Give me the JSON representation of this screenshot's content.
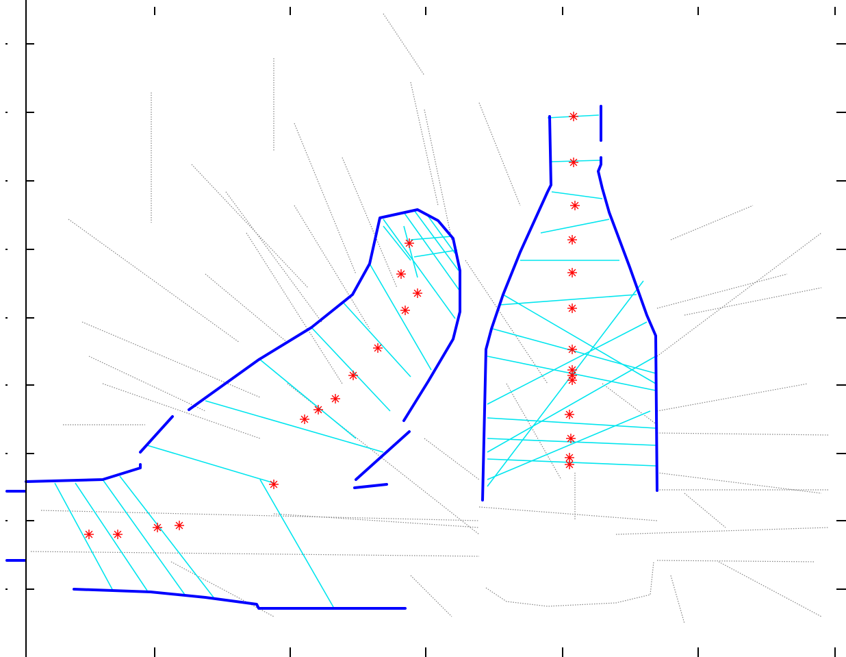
{
  "chart_data": {
    "type": "scatter",
    "title": "",
    "xlabel": "",
    "ylabel": "",
    "grid": false,
    "legend": "none",
    "x_ticks_visible": true,
    "y_ticks_visible": true,
    "tick_labels_visible": false,
    "colors": {
      "boundary": "#0000ff",
      "ribs": "#00e5ee",
      "axis_points": "#ff0000",
      "edges": "#808080",
      "axes": "#000000"
    },
    "series": [
      {
        "name": "",
        "kind": "boundary",
        "segments": [
          [
            [
              10,
              717
            ],
            [
              36,
              717
            ]
          ],
          [
            [
              10,
              818
            ],
            [
              36,
              818
            ]
          ],
          [
            [
              38,
              703
            ],
            [
              150,
              700
            ],
            [
              205,
              683
            ],
            [
              205,
              678
            ]
          ],
          [
            [
              205,
              660
            ],
            [
              252,
              608
            ]
          ],
          [
            [
              276,
              598
            ],
            [
              378,
              525
            ],
            [
              455,
              478
            ],
            [
              515,
              430
            ],
            [
              540,
              385
            ],
            [
              555,
              318
            ],
            [
              610,
              306
            ],
            [
              640,
              322
            ],
            [
              662,
              348
            ],
            [
              672,
              395
            ],
            [
              672,
              455
            ],
            [
              662,
              495
            ],
            [
              626,
              556
            ],
            [
              590,
              614
            ]
          ],
          [
            [
              598,
              630
            ],
            [
              520,
              700
            ]
          ],
          [
            [
              518,
              712
            ],
            [
              565,
              707
            ]
          ],
          [
            [
              108,
              860
            ],
            [
              220,
              864
            ],
            [
              300,
              872
            ],
            [
              375,
              882
            ],
            [
              378,
              888
            ],
            [
              592,
              888
            ]
          ],
          [
            [
              705,
              730
            ],
            [
              710,
              510
            ],
            [
              718,
              480
            ],
            [
              735,
              430
            ],
            [
              760,
              368
            ],
            [
              800,
              280
            ],
            [
              805,
              270
            ],
            [
              803,
              170
            ]
          ],
          [
            [
              878,
              155
            ],
            [
              878,
              205
            ]
          ],
          [
            [
              878,
              230
            ],
            [
              878,
              240
            ],
            [
              874,
              250
            ],
            [
              880,
              275
            ],
            [
              890,
              310
            ],
            [
              920,
              390
            ],
            [
              945,
              460
            ],
            [
              958,
              490
            ],
            [
              960,
              716
            ]
          ]
        ]
      },
      {
        "name": "",
        "kind": "ribs",
        "segments": [
          [
            [
              80,
              705
            ],
            [
              165,
              862
            ]
          ],
          [
            [
              110,
              705
            ],
            [
              215,
              862
            ]
          ],
          [
            [
              150,
              700
            ],
            [
              270,
              868
            ]
          ],
          [
            [
              175,
              695
            ],
            [
              312,
              872
            ]
          ],
          [
            [
              380,
              700
            ],
            [
              487,
              886
            ]
          ],
          [
            [
              215,
              650
            ],
            [
              400,
              705
            ]
          ],
          [
            [
              300,
              585
            ],
            [
              560,
              660
            ]
          ],
          [
            [
              380,
              525
            ],
            [
              520,
              640
            ]
          ],
          [
            [
              455,
              478
            ],
            [
              570,
              600
            ]
          ],
          [
            [
              500,
              440
            ],
            [
              600,
              550
            ]
          ],
          [
            [
              540,
              385
            ],
            [
              630,
              540
            ]
          ],
          [
            [
              560,
              320
            ],
            [
              665,
              465
            ]
          ],
          [
            [
              590,
              310
            ],
            [
              672,
              425
            ]
          ],
          [
            [
              605,
              307
            ],
            [
              670,
              395
            ]
          ],
          [
            [
              625,
              315
            ],
            [
              665,
              370
            ]
          ],
          [
            [
              560,
              330
            ],
            [
              600,
              380
            ]
          ],
          [
            [
              590,
              330
            ],
            [
              610,
              405
            ]
          ],
          [
            [
              600,
              350
            ],
            [
              660,
              345
            ]
          ],
          [
            [
              605,
              375
            ],
            [
              668,
              365
            ]
          ],
          [
            [
              800,
              172
            ],
            [
              875,
              168
            ]
          ],
          [
            [
              806,
              236
            ],
            [
              876,
              234
            ]
          ],
          [
            [
              806,
              280
            ],
            [
              880,
              290
            ]
          ],
          [
            [
              790,
              340
            ],
            [
              890,
              320
            ]
          ],
          [
            [
              760,
              380
            ],
            [
              905,
              380
            ]
          ],
          [
            [
              735,
              430
            ],
            [
              958,
              560
            ]
          ],
          [
            [
              720,
              480
            ],
            [
              958,
              545
            ]
          ],
          [
            [
              712,
              520
            ],
            [
              958,
              570
            ]
          ],
          [
            [
              712,
              590
            ],
            [
              945,
              470
            ]
          ],
          [
            [
              712,
              640
            ],
            [
              958,
              650
            ]
          ],
          [
            [
              712,
              670
            ],
            [
              958,
              680
            ]
          ],
          [
            [
              712,
              700
            ],
            [
              950,
              600
            ]
          ],
          [
            [
              712,
              710
            ],
            [
              940,
              410
            ]
          ],
          [
            [
              730,
              445
            ],
            [
              930,
              430
            ]
          ],
          [
            [
              712,
              610
            ],
            [
              958,
              625
            ]
          ],
          [
            [
              712,
              660
            ],
            [
              958,
              520
            ]
          ]
        ]
      },
      {
        "name": "",
        "kind": "medial_axis_points",
        "x": [
          130,
          172,
          230,
          262,
          400,
          445,
          465,
          490,
          516,
          552,
          592,
          610,
          586,
          598,
          838,
          838,
          840,
          836,
          836,
          836,
          836,
          836,
          836,
          836,
          832,
          834,
          832,
          832
        ],
        "y": [
          780,
          780,
          770,
          767,
          707,
          612,
          598,
          582,
          548,
          508,
          453,
          428,
          400,
          355,
          170,
          237,
          300,
          350,
          398,
          450,
          510,
          540,
          548,
          555,
          605,
          640,
          668,
          678
        ]
      },
      {
        "name": "",
        "kind": "edge_lines",
        "segments": [
          [
            [
              92,
              620
            ],
            [
              212,
              620
            ]
          ],
          [
            [
              45,
              805
            ],
            [
              700,
              812
            ]
          ],
          [
            [
              960,
              632
            ],
            [
              1210,
              635
            ]
          ],
          [
            [
              960,
              715
            ],
            [
              1210,
              715
            ]
          ],
          [
            [
              960,
              818
            ],
            [
              1190,
              820
            ]
          ],
          [
            [
              221,
              135
            ],
            [
              221,
              325
            ]
          ],
          [
            [
              400,
              85
            ],
            [
              400,
              220
            ]
          ],
          [
            [
              710,
              858
            ],
            [
              740,
              878
            ],
            [
              800,
              885
            ],
            [
              900,
              880
            ],
            [
              950,
              868
            ],
            [
              955,
              820
            ]
          ],
          [
            [
              840,
              690
            ],
            [
              840,
              760
            ]
          ],
          [
            [
              100,
              320
            ],
            [
              350,
              500
            ]
          ],
          [
            [
              300,
              400
            ],
            [
              420,
              500
            ]
          ],
          [
            [
              420,
              560
            ],
            [
              700,
              780
            ]
          ],
          [
            [
              600,
              120
            ],
            [
              640,
              300
            ]
          ],
          [
            [
              700,
              150
            ],
            [
              760,
              300
            ]
          ],
          [
            [
              960,
              520
            ],
            [
              1200,
              340
            ]
          ],
          [
            [
              960,
              450
            ],
            [
              1150,
              400
            ]
          ],
          [
            [
              960,
              690
            ],
            [
              1200,
              720
            ]
          ],
          [
            [
              700,
              740
            ],
            [
              960,
              760
            ]
          ],
          [
            [
              60,
              745
            ],
            [
              700,
              760
            ]
          ],
          [
            [
              400,
              750
            ],
            [
              700,
              770
            ]
          ],
          [
            [
              900,
              780
            ],
            [
              1210,
              770
            ]
          ],
          [
            [
              500,
              230
            ],
            [
              580,
              420
            ]
          ],
          [
            [
              430,
              180
            ],
            [
              520,
              400
            ]
          ],
          [
            [
              620,
              160
            ],
            [
              660,
              350
            ]
          ],
          [
            [
              330,
              280
            ],
            [
              470,
              470
            ]
          ],
          [
            [
              120,
              470
            ],
            [
              380,
              580
            ]
          ],
          [
            [
              130,
              520
            ],
            [
              300,
              600
            ]
          ],
          [
            [
              680,
              380
            ],
            [
              800,
              560
            ]
          ],
          [
            [
              600,
              840
            ],
            [
              660,
              900
            ]
          ],
          [
            [
              980,
              840
            ],
            [
              1000,
              910
            ]
          ],
          [
            [
              1050,
              820
            ],
            [
              1200,
              900
            ]
          ],
          [
            [
              250,
              820
            ],
            [
              400,
              900
            ]
          ],
          [
            [
              1000,
              720
            ],
            [
              1060,
              770
            ]
          ],
          [
            [
              960,
              600
            ],
            [
              1180,
              560
            ]
          ],
          [
            [
              560,
              20
            ],
            [
              620,
              110
            ]
          ],
          [
            [
              980,
              350
            ],
            [
              1100,
              300
            ]
          ],
          [
            [
              1000,
              460
            ],
            [
              1200,
              420
            ]
          ],
          [
            [
              150,
              560
            ],
            [
              380,
              640
            ]
          ],
          [
            [
              620,
              640
            ],
            [
              700,
              700
            ]
          ],
          [
            [
              430,
              300
            ],
            [
              540,
              480
            ]
          ],
          [
            [
              280,
              240
            ],
            [
              450,
              420
            ]
          ],
          [
            [
              360,
              340
            ],
            [
              500,
              560
            ]
          ],
          [
            [
              740,
              560
            ],
            [
              820,
              700
            ]
          ],
          [
            [
              880,
              560
            ],
            [
              960,
              620
            ]
          ]
        ]
      }
    ],
    "xlim": [
      0,
      1236
    ],
    "ylim": [
      959,
      0
    ],
    "x_ticks": [
      226,
      424,
      622,
      822,
      1020,
      1220
    ],
    "y_ticks": [
      64,
      164,
      264,
      364,
      464,
      562,
      662,
      760,
      860
    ]
  }
}
